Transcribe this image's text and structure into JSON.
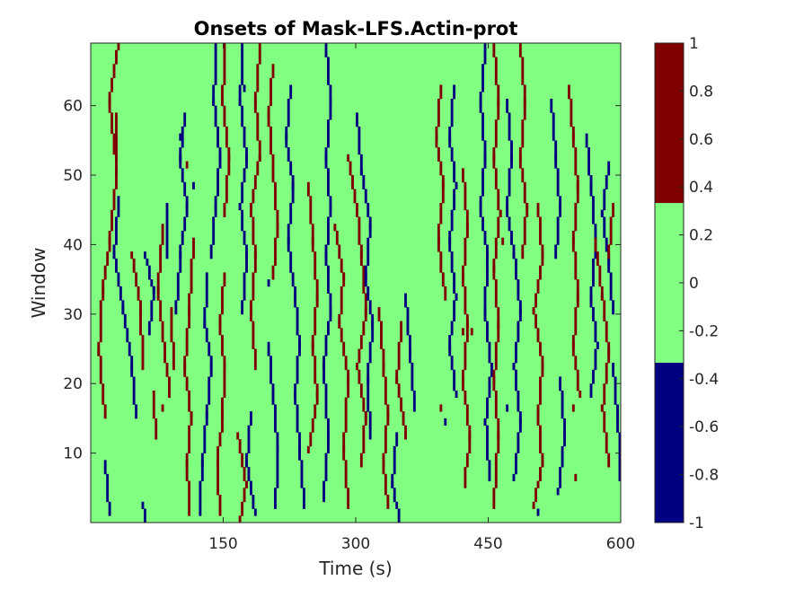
{
  "chart_data": {
    "type": "heatmap",
    "title": "Onsets of Mask-LFS.Actin-prot",
    "xlabel": "Time (s)",
    "ylabel": "Window",
    "xlim": [
      0,
      600
    ],
    "ylim": [
      0,
      69
    ],
    "x_ticks": [
      150,
      300,
      450,
      600
    ],
    "y_ticks": [
      10,
      20,
      30,
      40,
      50,
      60
    ],
    "colorbar": {
      "range": [
        -1,
        1
      ],
      "ticks": [
        "1",
        "0.8",
        "0.6",
        "0.4",
        "0.2",
        "0",
        "-0.2",
        "-0.4",
        "-0.6",
        "-0.8",
        "-1"
      ],
      "levels": [
        {
          "value": -1,
          "from": -1,
          "to": -0.333,
          "color": "#000080"
        },
        {
          "value": 0,
          "from": -0.333,
          "to": 0.333,
          "color": "#80ff80"
        },
        {
          "value": 1,
          "from": 0.333,
          "to": 1,
          "color": "#800000"
        }
      ]
    },
    "background_value": 0,
    "paths": [
      {
        "value": 1,
        "points": [
          [
            30,
            69
          ],
          [
            20,
            60
          ],
          [
            28,
            50
          ],
          [
            20,
            40
          ],
          [
            12,
            33
          ],
          [
            8,
            24
          ],
          [
            15,
            15
          ]
        ]
      },
      {
        "value": -1,
        "points": [
          [
            15,
            8
          ],
          [
            20,
            1
          ]
        ]
      },
      {
        "value": -1,
        "points": [
          [
            30,
            46
          ],
          [
            25,
            38
          ],
          [
            35,
            30
          ],
          [
            45,
            22
          ],
          [
            50,
            15
          ]
        ]
      },
      {
        "value": 1,
        "points": [
          [
            28,
            58
          ],
          [
            28,
            52
          ]
        ]
      },
      {
        "value": 1,
        "points": [
          [
            45,
            38
          ],
          [
            55,
            30
          ],
          [
            58,
            22
          ]
        ]
      },
      {
        "value": -1,
        "points": [
          [
            60,
            38
          ],
          [
            70,
            33
          ],
          [
            65,
            27
          ]
        ]
      },
      {
        "value": 1,
        "points": [
          [
            80,
            42
          ],
          [
            75,
            33
          ],
          [
            82,
            25
          ],
          [
            88,
            18
          ]
        ]
      },
      {
        "value": -1,
        "points": [
          [
            85,
            45
          ],
          [
            85,
            38
          ]
        ]
      },
      {
        "value": 1,
        "points": [
          [
            90,
            30
          ],
          [
            92,
            22
          ]
        ]
      },
      {
        "value": 1,
        "points": [
          [
            70,
            18
          ],
          [
            72,
            12
          ]
        ]
      },
      {
        "value": -1,
        "points": [
          [
            58,
            2
          ],
          [
            60,
            0
          ]
        ]
      },
      {
        "value": -1,
        "points": [
          [
            105,
            58
          ],
          [
            100,
            52
          ],
          [
            108,
            45
          ],
          [
            100,
            38
          ],
          [
            95,
            30
          ]
        ]
      },
      {
        "value": 1,
        "points": [
          [
            115,
            40
          ],
          [
            110,
            30
          ],
          [
            105,
            22
          ],
          [
            112,
            15
          ],
          [
            108,
            8
          ],
          [
            110,
            1
          ]
        ]
      },
      {
        "value": -1,
        "points": [
          [
            140,
            68
          ],
          [
            138,
            60
          ],
          [
            145,
            52
          ],
          [
            140,
            45
          ],
          [
            135,
            38
          ]
        ]
      },
      {
        "value": 1,
        "points": [
          [
            150,
            68
          ],
          [
            148,
            60
          ],
          [
            155,
            52
          ],
          [
            150,
            44
          ]
        ]
      },
      {
        "value": -1,
        "points": [
          [
            130,
            35
          ],
          [
            128,
            28
          ],
          [
            135,
            22
          ],
          [
            130,
            15
          ],
          [
            125,
            8
          ],
          [
            122,
            1
          ]
        ]
      },
      {
        "value": 1,
        "points": [
          [
            150,
            35
          ],
          [
            145,
            28
          ],
          [
            150,
            22
          ],
          [
            148,
            15
          ],
          [
            142,
            8
          ],
          [
            145,
            1
          ]
        ]
      },
      {
        "value": -1,
        "points": [
          [
            170,
            68
          ],
          [
            168,
            60
          ],
          [
            175,
            52
          ],
          [
            168,
            45
          ],
          [
            175,
            38
          ],
          [
            170,
            30
          ]
        ]
      },
      {
        "value": 1,
        "points": [
          [
            190,
            68
          ],
          [
            185,
            60
          ],
          [
            190,
            52
          ],
          [
            180,
            45
          ],
          [
            185,
            38
          ],
          [
            180,
            30
          ],
          [
            185,
            22
          ]
        ]
      },
      {
        "value": -1,
        "points": [
          [
            180,
            15
          ],
          [
            175,
            8
          ],
          [
            185,
            1
          ]
        ]
      },
      {
        "value": 1,
        "points": [
          [
            165,
            12
          ],
          [
            175,
            5
          ],
          [
            168,
            0
          ]
        ]
      },
      {
        "value": 1,
        "points": [
          [
            205,
            65
          ],
          [
            200,
            58
          ],
          [
            205,
            50
          ],
          [
            210,
            42
          ],
          [
            205,
            35
          ]
        ]
      },
      {
        "value": -1,
        "points": [
          [
            200,
            25
          ],
          [
            205,
            18
          ],
          [
            210,
            10
          ],
          [
            208,
            2
          ]
        ]
      },
      {
        "value": -1,
        "points": [
          [
            225,
            62
          ],
          [
            220,
            55
          ],
          [
            228,
            48
          ],
          [
            222,
            40
          ],
          [
            230,
            32
          ],
          [
            235,
            25
          ],
          [
            230,
            18
          ],
          [
            235,
            10
          ],
          [
            240,
            2
          ]
        ]
      },
      {
        "value": 1,
        "points": [
          [
            245,
            48
          ],
          [
            250,
            40
          ],
          [
            255,
            32
          ],
          [
            250,
            25
          ],
          [
            255,
            18
          ],
          [
            245,
            10
          ]
        ]
      },
      {
        "value": -1,
        "points": [
          [
            265,
            68
          ],
          [
            270,
            60
          ],
          [
            265,
            52
          ],
          [
            270,
            45
          ],
          [
            265,
            38
          ],
          [
            270,
            30
          ],
          [
            262,
            22
          ],
          [
            268,
            12
          ],
          [
            262,
            3
          ]
        ]
      },
      {
        "value": 1,
        "points": [
          [
            275,
            42
          ],
          [
            285,
            35
          ],
          [
            280,
            28
          ],
          [
            290,
            20
          ],
          [
            285,
            10
          ],
          [
            290,
            2
          ]
        ]
      },
      {
        "value": 1,
        "points": [
          [
            290,
            52
          ],
          [
            300,
            45
          ],
          [
            305,
            38
          ],
          [
            310,
            30
          ],
          [
            300,
            22
          ],
          [
            310,
            15
          ],
          [
            305,
            8
          ]
        ]
      },
      {
        "value": -1,
        "points": [
          [
            300,
            58
          ],
          [
            305,
            50
          ],
          [
            315,
            42
          ],
          [
            310,
            35
          ],
          [
            318,
            28
          ],
          [
            312,
            20
          ],
          [
            315,
            12
          ]
        ]
      },
      {
        "value": 1,
        "points": [
          [
            325,
            30
          ],
          [
            330,
            22
          ],
          [
            335,
            15
          ],
          [
            330,
            8
          ],
          [
            335,
            2
          ]
        ]
      },
      {
        "value": -1,
        "points": [
          [
            345,
            12
          ],
          [
            340,
            5
          ],
          [
            348,
            0
          ]
        ]
      },
      {
        "value": 1,
        "points": [
          [
            350,
            28
          ],
          [
            345,
            20
          ],
          [
            355,
            12
          ]
        ]
      },
      {
        "value": -1,
        "points": [
          [
            355,
            32
          ],
          [
            360,
            24
          ],
          [
            365,
            16
          ]
        ]
      },
      {
        "value": 1,
        "points": [
          [
            395,
            62
          ],
          [
            390,
            55
          ],
          [
            398,
            48
          ],
          [
            392,
            40
          ],
          [
            400,
            32
          ]
        ]
      },
      {
        "value": -1,
        "points": [
          [
            410,
            62
          ],
          [
            405,
            55
          ],
          [
            412,
            48
          ],
          [
            405,
            40
          ],
          [
            412,
            32
          ],
          [
            405,
            25
          ],
          [
            412,
            18
          ]
        ]
      },
      {
        "value": 1,
        "points": [
          [
            420,
            50
          ],
          [
            425,
            42
          ],
          [
            420,
            35
          ],
          [
            425,
            28
          ],
          [
            420,
            20
          ],
          [
            428,
            12
          ],
          [
            422,
            5
          ]
        ]
      },
      {
        "value": -1,
        "points": [
          [
            445,
            68
          ],
          [
            440,
            60
          ],
          [
            445,
            52
          ],
          [
            440,
            45
          ],
          [
            448,
            38
          ],
          [
            445,
            30
          ],
          [
            452,
            22
          ],
          [
            446,
            14
          ],
          [
            450,
            6
          ]
        ]
      },
      {
        "value": 1,
        "points": [
          [
            455,
            68
          ],
          [
            460,
            60
          ],
          [
            455,
            52
          ],
          [
            462,
            44
          ],
          [
            455,
            36
          ],
          [
            460,
            28
          ],
          [
            455,
            20
          ],
          [
            460,
            12
          ],
          [
            455,
            2
          ]
        ]
      },
      {
        "value": -1,
        "points": [
          [
            470,
            60
          ],
          [
            475,
            52
          ],
          [
            470,
            45
          ],
          [
            478,
            38
          ],
          [
            485,
            30
          ],
          [
            478,
            22
          ],
          [
            485,
            14
          ],
          [
            478,
            6
          ]
        ]
      },
      {
        "value": 1,
        "points": [
          [
            485,
            68
          ],
          [
            490,
            60
          ],
          [
            485,
            52
          ],
          [
            492,
            45
          ],
          [
            488,
            38
          ]
        ]
      },
      {
        "value": 1,
        "points": [
          [
            505,
            45
          ],
          [
            510,
            38
          ],
          [
            500,
            30
          ],
          [
            510,
            22
          ],
          [
            505,
            15
          ],
          [
            510,
            8
          ],
          [
            500,
            2
          ]
        ]
      },
      {
        "value": -1,
        "points": [
          [
            520,
            60
          ],
          [
            525,
            52
          ],
          [
            530,
            45
          ],
          [
            525,
            38
          ]
        ]
      },
      {
        "value": -1,
        "points": [
          [
            530,
            20
          ],
          [
            535,
            12
          ],
          [
            528,
            4
          ]
        ]
      },
      {
        "value": 1,
        "points": [
          [
            540,
            62
          ],
          [
            545,
            55
          ],
          [
            550,
            48
          ],
          [
            545,
            40
          ],
          [
            550,
            32
          ],
          [
            545,
            25
          ],
          [
            552,
            18
          ]
        ]
      },
      {
        "value": -1,
        "points": [
          [
            560,
            55
          ],
          [
            565,
            48
          ],
          [
            570,
            40
          ],
          [
            565,
            32
          ],
          [
            572,
            25
          ],
          [
            565,
            18
          ]
        ]
      },
      {
        "value": 1,
        "points": [
          [
            570,
            40
          ],
          [
            578,
            32
          ],
          [
            585,
            24
          ],
          [
            578,
            16
          ],
          [
            585,
            8
          ]
        ]
      },
      {
        "value": -1,
        "points": [
          [
            585,
            51
          ],
          [
            578,
            44
          ],
          [
            585,
            37
          ],
          [
            590,
            30
          ]
        ]
      },
      {
        "value": 1,
        "points": [
          [
            590,
            45
          ],
          [
            585,
            38
          ]
        ]
      },
      {
        "value": -1,
        "points": [
          [
            595,
            15
          ],
          [
            598,
            8
          ],
          [
            600,
            2
          ]
        ]
      },
      {
        "value": -1,
        "points": [
          [
            590,
            22
          ],
          [
            595,
            15
          ]
        ]
      }
    ],
    "cells": [
      {
        "x": 100,
        "y": 55,
        "value": -1
      },
      {
        "x": 172,
        "y": 62,
        "value": -1
      },
      {
        "x": 200,
        "y": 34,
        "value": -1
      },
      {
        "x": 80,
        "y": 16,
        "value": 1
      },
      {
        "x": 400,
        "y": 14,
        "value": -1
      },
      {
        "x": 465,
        "y": 40,
        "value": 1
      },
      {
        "x": 470,
        "y": 16,
        "value": -1
      },
      {
        "x": 505,
        "y": 1,
        "value": -1
      },
      {
        "x": 545,
        "y": 16,
        "value": 1
      },
      {
        "x": 548,
        "y": 6,
        "value": 1
      },
      {
        "x": 420,
        "y": 27,
        "value": 1
      },
      {
        "x": 430,
        "y": 27,
        "value": 1
      },
      {
        "x": 108,
        "y": 51,
        "value": 1
      },
      {
        "x": 395,
        "y": 16,
        "value": 1
      },
      {
        "x": 115,
        "y": 48,
        "value": -1
      }
    ]
  }
}
